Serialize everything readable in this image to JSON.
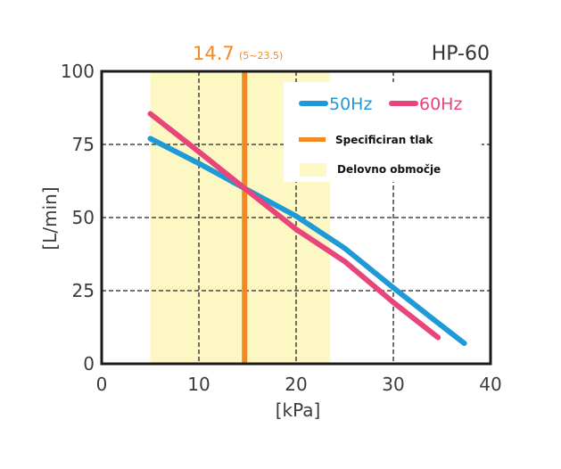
{
  "chart_data": {
    "type": "line",
    "title": "HP-60",
    "xlabel": "[kPa]",
    "ylabel": "[L/min]",
    "xlim": [
      0,
      40
    ],
    "ylim": [
      0,
      100
    ],
    "xticks": [
      "0",
      "10",
      "20",
      "30",
      "40"
    ],
    "yticks": [
      "0",
      "25",
      "50",
      "75",
      "100"
    ],
    "xtick_values": [
      0,
      10,
      20,
      30,
      40
    ],
    "ytick_values": [
      0,
      25,
      50,
      75,
      100
    ],
    "grid": true,
    "spec_pressure": {
      "label_value": "14.7",
      "label_range": "(5~23.5)",
      "value": 14.7,
      "range": [
        5,
        23.5
      ]
    },
    "series": [
      {
        "name": "50Hz",
        "color": "#1e9ad6",
        "x": [
          5,
          10,
          14.7,
          20,
          25,
          30,
          34,
          37.3
        ],
        "y": [
          77,
          68.5,
          60,
          50.5,
          39.5,
          26,
          15.5,
          7
        ]
      },
      {
        "name": "60Hz",
        "color": "#e8457a",
        "x": [
          5,
          10,
          14.7,
          20,
          25,
          30,
          34.6
        ],
        "y": [
          85.5,
          72.5,
          60,
          46,
          35,
          21,
          9
        ]
      }
    ],
    "legend": {
      "position": "top-right",
      "items": [
        {
          "label": "50Hz",
          "kind": "line",
          "color": "#1e9ad6"
        },
        {
          "label": "60Hz",
          "kind": "line",
          "color": "#e8457a"
        },
        {
          "label": "Specificiran tlak",
          "kind": "line",
          "color": "#f08a24"
        },
        {
          "label": "Delovno območje",
          "kind": "patch",
          "color": "#fdf7c3"
        }
      ]
    }
  }
}
